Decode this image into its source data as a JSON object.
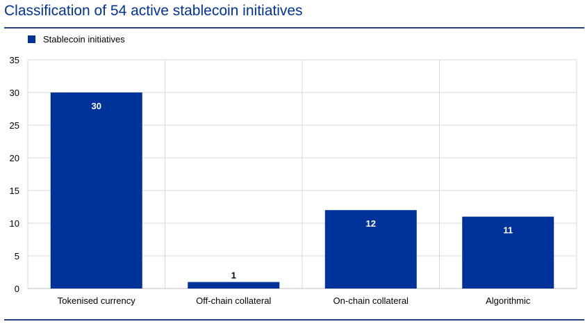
{
  "title": "Classification of 54 active stablecoin initiatives",
  "legend": {
    "label": "Stablecoin initiatives",
    "color": "#003399"
  },
  "chart_data": {
    "type": "bar",
    "title": "Classification of 54 active stablecoin initiatives",
    "categories": [
      "Tokenised currency",
      "Off-chain collateral",
      "On-chain collateral",
      "Algorithmic"
    ],
    "series": [
      {
        "name": "Stablecoin initiatives",
        "values": [
          30,
          1,
          12,
          11
        ],
        "color": "#003399"
      }
    ],
    "data_labels": [
      "30",
      "1",
      "12",
      "11"
    ],
    "ylim": [
      0,
      35
    ],
    "yticks": [
      0,
      5,
      10,
      15,
      20,
      25,
      30,
      35
    ],
    "xlabel": "",
    "ylabel": "",
    "grid": true,
    "legend_position": "top-left"
  }
}
